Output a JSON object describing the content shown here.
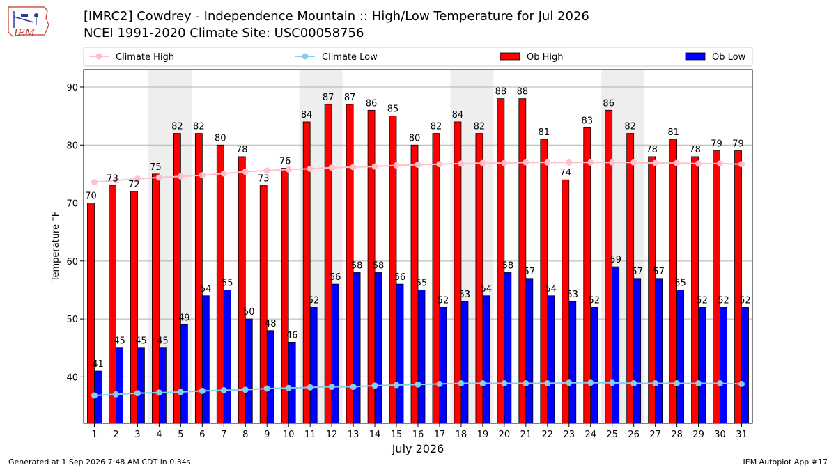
{
  "header": {
    "title": "[IMRC2] Cowdrey - Independence Mountain :: High/Low Temperature for Jul 2026",
    "subtitle": "NCEI 1991-2020 Climate Site: USC00058756",
    "logo_text": "IEM"
  },
  "footer": {
    "left": "Generated at 1 Sep 2026 7:48 AM CDT in 0.34s",
    "right": "IEM Autoplot App #17"
  },
  "chart_data": {
    "type": "bar",
    "xlabel": "July 2026",
    "ylabel": "Temperature °F",
    "ylim": [
      32,
      93
    ],
    "yticks": [
      40,
      50,
      60,
      70,
      80,
      90
    ],
    "grid": true,
    "legend_position": "top",
    "categories": [
      "1",
      "2",
      "3",
      "4",
      "5",
      "6",
      "7",
      "8",
      "9",
      "10",
      "11",
      "12",
      "13",
      "14",
      "15",
      "16",
      "17",
      "18",
      "19",
      "20",
      "21",
      "22",
      "23",
      "24",
      "25",
      "26",
      "27",
      "28",
      "29",
      "30",
      "31"
    ],
    "weekend_shaded_days": [
      4,
      5,
      11,
      12,
      18,
      19,
      25,
      26
    ],
    "series": [
      {
        "name": "Climate High",
        "kind": "line",
        "color": "#ffc0cb",
        "values": [
          73.6,
          73.9,
          74.2,
          74.4,
          74.6,
          74.8,
          75.1,
          75.4,
          75.6,
          75.8,
          75.9,
          76.1,
          76.2,
          76.3,
          76.5,
          76.6,
          76.7,
          76.8,
          76.9,
          76.9,
          77.0,
          77.0,
          77.0,
          77.0,
          77.0,
          77.0,
          76.9,
          76.9,
          76.8,
          76.8,
          76.7
        ]
      },
      {
        "name": "Climate Low",
        "kind": "line",
        "color": "#87ceeb",
        "values": [
          36.8,
          37.0,
          37.2,
          37.3,
          37.4,
          37.6,
          37.7,
          37.8,
          38.0,
          38.1,
          38.2,
          38.3,
          38.3,
          38.5,
          38.6,
          38.7,
          38.8,
          38.9,
          38.9,
          38.9,
          38.9,
          38.9,
          39.0,
          39.0,
          39.0,
          38.9,
          38.9,
          38.9,
          38.9,
          38.9,
          38.8
        ]
      },
      {
        "name": "Ob High",
        "kind": "bar",
        "color": "#ff0000",
        "values": [
          70,
          73,
          72,
          75,
          82,
          82,
          80,
          78,
          73,
          76,
          84,
          87,
          87,
          86,
          85,
          80,
          82,
          84,
          82,
          88,
          88,
          81,
          74,
          83,
          86,
          82,
          78,
          81,
          78,
          79,
          79
        ]
      },
      {
        "name": "Ob Low",
        "kind": "bar",
        "color": "#0000ff",
        "values": [
          41,
          45,
          45,
          45,
          49,
          54,
          55,
          50,
          48,
          46,
          52,
          56,
          58,
          58,
          56,
          55,
          52,
          53,
          54,
          58,
          57,
          54,
          53,
          52,
          59,
          57,
          57,
          55,
          52,
          52,
          52
        ]
      }
    ]
  }
}
